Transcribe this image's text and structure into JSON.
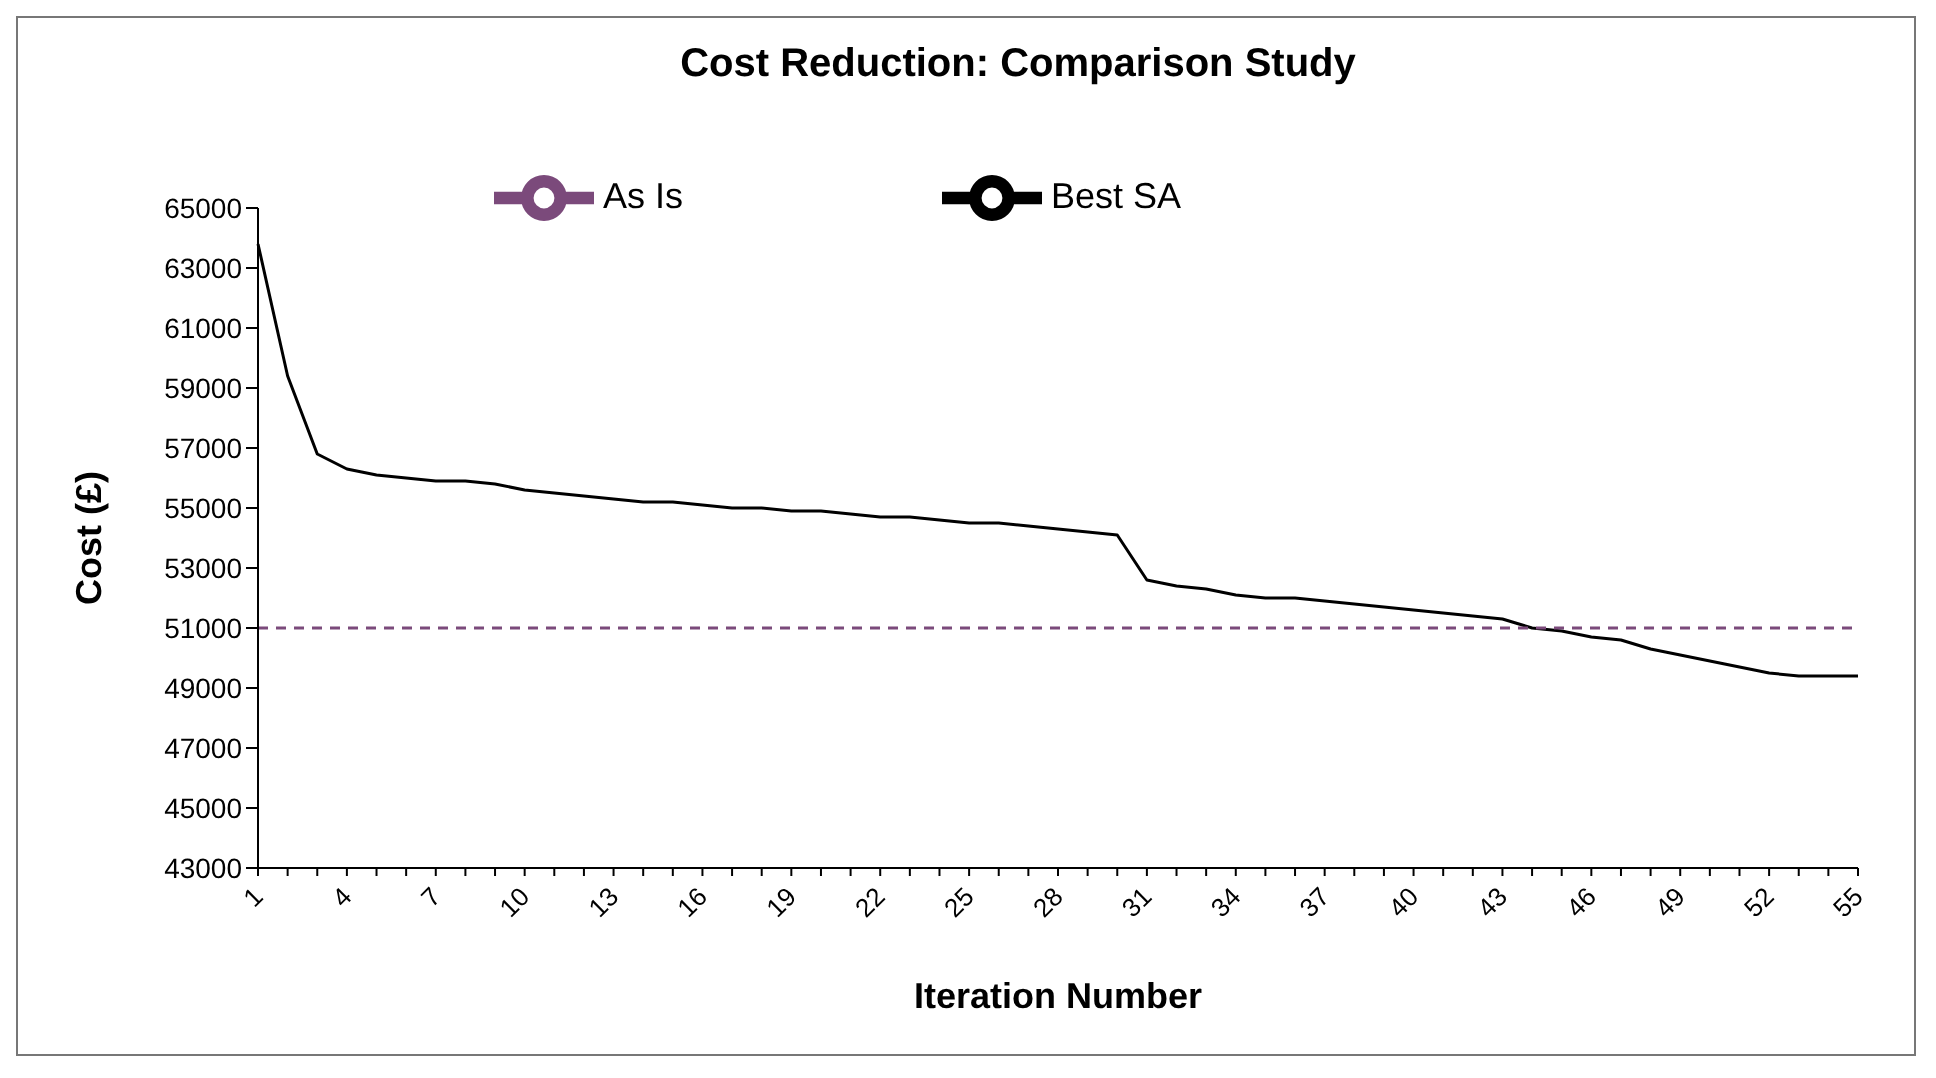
{
  "chart_data": {
    "type": "line",
    "title": "Cost Reduction: Comparison Study",
    "xlabel": "Iteration Number",
    "ylabel": "Cost (£)",
    "categories": [
      "1",
      null,
      null,
      "4",
      null,
      null,
      "7",
      null,
      null,
      "10",
      null,
      null,
      "13",
      null,
      null,
      "16",
      null,
      null,
      "19",
      null,
      null,
      "22",
      null,
      null,
      "25",
      null,
      null,
      "28",
      null,
      null,
      "31",
      null,
      null,
      "34",
      null,
      null,
      "37",
      null,
      null,
      "40",
      null,
      null,
      "43",
      null,
      null,
      "46",
      null,
      null,
      "49",
      null,
      null,
      "52",
      null,
      null,
      "55"
    ],
    "series": [
      {
        "name": "Best SA",
        "color": "#000000",
        "line_style": "solid",
        "values": [
          63800,
          59400,
          56800,
          56300,
          56100,
          56000,
          55900,
          55900,
          55800,
          55600,
          55500,
          55400,
          55300,
          55200,
          55200,
          55100,
          55000,
          55000,
          54900,
          54900,
          54800,
          54700,
          54700,
          54600,
          54500,
          54500,
          54400,
          54300,
          54200,
          54100,
          52600,
          52400,
          52300,
          52100,
          52000,
          52000,
          51900,
          51800,
          51700,
          51600,
          51500,
          51400,
          51300,
          51000,
          50900,
          50700,
          50600,
          50300,
          50100,
          49900,
          49700,
          49500,
          49400,
          49400,
          49400
        ]
      },
      {
        "name": "As Is",
        "color": "#7b4a7b",
        "line_style": "dashed",
        "values": [
          51000,
          51000,
          51000,
          51000,
          51000,
          51000,
          51000,
          51000,
          51000,
          51000,
          51000,
          51000,
          51000,
          51000,
          51000,
          51000,
          51000,
          51000,
          51000,
          51000,
          51000,
          51000,
          51000,
          51000,
          51000,
          51000,
          51000,
          51000,
          51000,
          51000,
          51000,
          51000,
          51000,
          51000,
          51000,
          51000,
          51000,
          51000,
          51000,
          51000,
          51000,
          51000,
          51000,
          51000,
          51000,
          51000,
          51000,
          51000,
          51000,
          51000,
          51000,
          51000,
          51000,
          51000,
          51000
        ]
      }
    ],
    "ylim": [
      43000,
      65000
    ],
    "yticks": [
      43000,
      45000,
      47000,
      49000,
      51000,
      53000,
      55000,
      57000,
      59000,
      61000,
      63000,
      65000
    ],
    "grid": false,
    "legend": "top",
    "marker": "none"
  }
}
